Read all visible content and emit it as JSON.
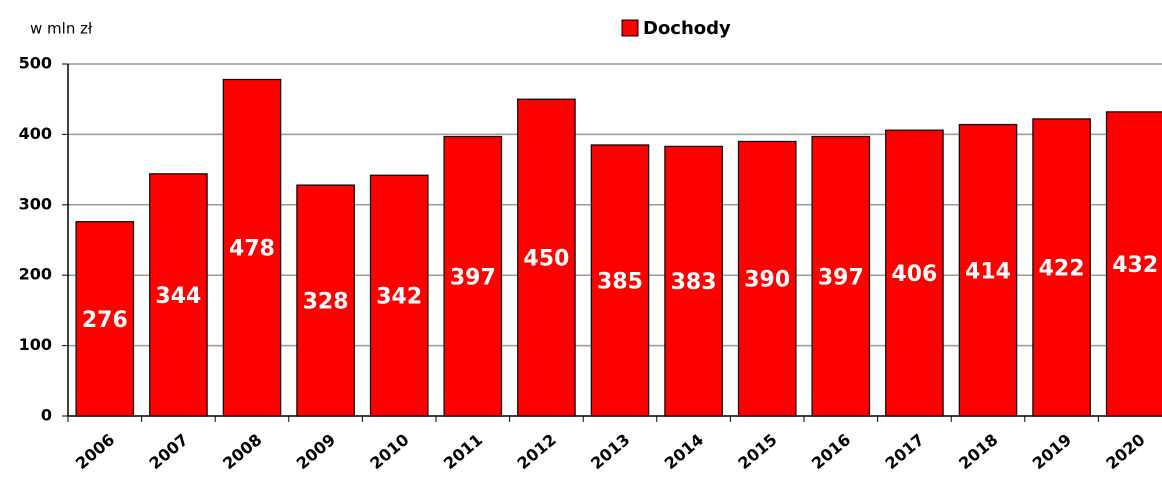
{
  "chart_data": {
    "type": "bar",
    "legend_title": "Dochody",
    "y_axis_label": "w mln zł",
    "categories": [
      "2006",
      "2007",
      "2008",
      "2009",
      "2010",
      "2011",
      "2012",
      "2013",
      "2014",
      "2015",
      "2016",
      "2017",
      "2018",
      "2019",
      "2020"
    ],
    "series": [
      {
        "name": "Dochody",
        "color": "#ff0000",
        "values": [
          276,
          344,
          478,
          328,
          342,
          397,
          450,
          385,
          383,
          390,
          397,
          406,
          414,
          422,
          432
        ]
      }
    ],
    "ylim": [
      0,
      500
    ],
    "yticks": [
      0,
      100,
      200,
      300,
      400,
      500
    ],
    "grid": true,
    "legend": "top"
  }
}
